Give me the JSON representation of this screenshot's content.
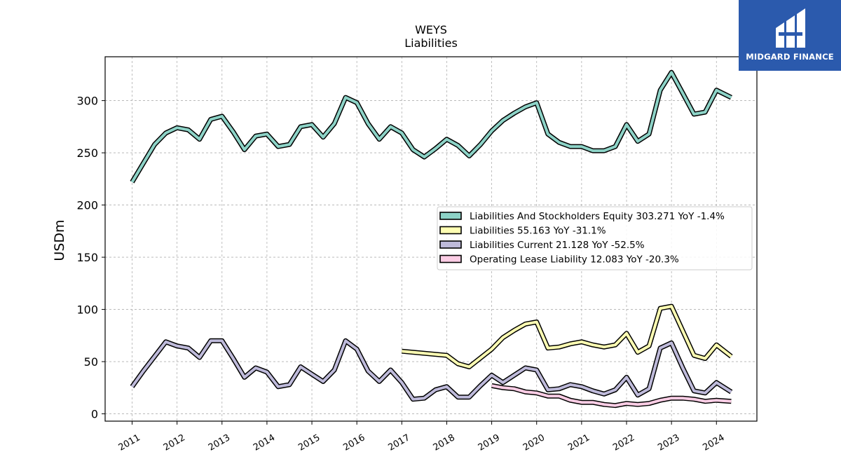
{
  "brand": {
    "name": "MIDGARD FINANCE"
  },
  "chart_data": {
    "type": "line",
    "title": "WEYS",
    "subtitle": "Liabilities",
    "ylabel": "USDm",
    "xlabel": "",
    "xlim": [
      2010.4,
      2024.9
    ],
    "ylim": [
      -7,
      342
    ],
    "yticks": [
      0,
      50,
      100,
      150,
      200,
      250,
      300
    ],
    "xticks": [
      2011,
      2012,
      2013,
      2014,
      2015,
      2016,
      2017,
      2018,
      2019,
      2020,
      2021,
      2022,
      2023,
      2024
    ],
    "grid": true,
    "legend_position": "center-right",
    "series": [
      {
        "name": "Liabilities And Stockholders Equity",
        "legend": "Liabilities And Stockholders Equity  303.271 YoY -1.4%",
        "color": "#8dd3c7",
        "points": [
          [
            2011.0,
            222
          ],
          [
            2011.25,
            240
          ],
          [
            2011.5,
            258
          ],
          [
            2011.75,
            269
          ],
          [
            2012.0,
            274
          ],
          [
            2012.25,
            272
          ],
          [
            2012.5,
            263
          ],
          [
            2012.75,
            282
          ],
          [
            2013.0,
            285
          ],
          [
            2013.25,
            270
          ],
          [
            2013.5,
            253
          ],
          [
            2013.75,
            266
          ],
          [
            2014.0,
            268
          ],
          [
            2014.25,
            256
          ],
          [
            2014.5,
            258
          ],
          [
            2014.75,
            275
          ],
          [
            2015.0,
            277
          ],
          [
            2015.25,
            265
          ],
          [
            2015.5,
            278
          ],
          [
            2015.75,
            303
          ],
          [
            2016.0,
            298
          ],
          [
            2016.25,
            278
          ],
          [
            2016.5,
            263
          ],
          [
            2016.75,
            275
          ],
          [
            2017.0,
            269
          ],
          [
            2017.25,
            253
          ],
          [
            2017.5,
            246
          ],
          [
            2017.75,
            254
          ],
          [
            2018.0,
            263
          ],
          [
            2018.25,
            257
          ],
          [
            2018.5,
            247
          ],
          [
            2018.75,
            258
          ],
          [
            2019.0,
            271
          ],
          [
            2019.25,
            281
          ],
          [
            2019.5,
            288
          ],
          [
            2019.75,
            294
          ],
          [
            2020.0,
            298
          ],
          [
            2020.25,
            268
          ],
          [
            2020.5,
            260
          ],
          [
            2020.75,
            256
          ],
          [
            2021.0,
            256
          ],
          [
            2021.25,
            252
          ],
          [
            2021.5,
            252
          ],
          [
            2021.75,
            256
          ],
          [
            2022.0,
            277
          ],
          [
            2022.25,
            261
          ],
          [
            2022.5,
            268
          ],
          [
            2022.75,
            310
          ],
          [
            2023.0,
            327
          ],
          [
            2023.25,
            307
          ],
          [
            2023.5,
            287
          ],
          [
            2023.75,
            289
          ],
          [
            2024.0,
            310
          ],
          [
            2024.33,
            303
          ]
        ]
      },
      {
        "name": "Liabilities",
        "legend": "Liabilities  55.163 YoY -31.1%",
        "color": "#ffffb3",
        "points": [
          [
            2017.0,
            60
          ],
          [
            2018.0,
            56
          ],
          [
            2018.25,
            48
          ],
          [
            2018.5,
            45
          ],
          [
            2019.0,
            62
          ],
          [
            2019.25,
            73
          ],
          [
            2019.5,
            80
          ],
          [
            2019.75,
            86
          ],
          [
            2020.0,
            88
          ],
          [
            2020.25,
            63
          ],
          [
            2020.5,
            64
          ],
          [
            2020.75,
            67
          ],
          [
            2021.0,
            69
          ],
          [
            2021.25,
            66
          ],
          [
            2021.5,
            64
          ],
          [
            2021.75,
            66
          ],
          [
            2022.0,
            77
          ],
          [
            2022.25,
            59
          ],
          [
            2022.5,
            65
          ],
          [
            2022.75,
            101
          ],
          [
            2023.0,
            103
          ],
          [
            2023.5,
            56
          ],
          [
            2023.75,
            53
          ],
          [
            2024.0,
            66
          ],
          [
            2024.33,
            55
          ]
        ]
      },
      {
        "name": "Liabilities Current",
        "legend": "Liabilities Current  21.128 YoY -52.5%",
        "color": "#bebada",
        "points": [
          [
            2011.0,
            26
          ],
          [
            2011.25,
            41
          ],
          [
            2011.5,
            55
          ],
          [
            2011.75,
            69
          ],
          [
            2012.0,
            65
          ],
          [
            2012.25,
            63
          ],
          [
            2012.5,
            54
          ],
          [
            2012.75,
            70
          ],
          [
            2013.0,
            70
          ],
          [
            2013.25,
            53
          ],
          [
            2013.5,
            35
          ],
          [
            2013.75,
            44
          ],
          [
            2014.0,
            40
          ],
          [
            2014.25,
            26
          ],
          [
            2014.5,
            28
          ],
          [
            2014.75,
            45
          ],
          [
            2015.0,
            38
          ],
          [
            2015.25,
            31
          ],
          [
            2015.5,
            42
          ],
          [
            2015.75,
            70
          ],
          [
            2016.0,
            62
          ],
          [
            2016.25,
            41
          ],
          [
            2016.5,
            31
          ],
          [
            2016.75,
            42
          ],
          [
            2017.0,
            30
          ],
          [
            2017.25,
            14
          ],
          [
            2017.5,
            15
          ],
          [
            2017.75,
            23
          ],
          [
            2018.0,
            26
          ],
          [
            2018.25,
            16
          ],
          [
            2018.5,
            16
          ],
          [
            2018.75,
            27
          ],
          [
            2019.0,
            37
          ],
          [
            2019.25,
            30
          ],
          [
            2019.5,
            37
          ],
          [
            2019.75,
            44
          ],
          [
            2020.0,
            42
          ],
          [
            2020.25,
            23
          ],
          [
            2020.5,
            24
          ],
          [
            2020.75,
            28
          ],
          [
            2021.0,
            26
          ],
          [
            2021.25,
            22
          ],
          [
            2021.5,
            19
          ],
          [
            2021.75,
            23
          ],
          [
            2022.0,
            35
          ],
          [
            2022.25,
            18
          ],
          [
            2022.5,
            24
          ],
          [
            2022.75,
            63
          ],
          [
            2023.0,
            68
          ],
          [
            2023.25,
            44
          ],
          [
            2023.5,
            22
          ],
          [
            2023.75,
            20
          ],
          [
            2024.0,
            30
          ],
          [
            2024.33,
            21
          ]
        ]
      },
      {
        "name": "Operating Lease Liability",
        "legend": "Operating Lease Liability  12.083 YoY -20.3%",
        "color": "#fccde5",
        "points": [
          [
            2019.0,
            27
          ],
          [
            2019.25,
            25
          ],
          [
            2019.5,
            24
          ],
          [
            2019.75,
            21
          ],
          [
            2020.0,
            20
          ],
          [
            2020.25,
            17
          ],
          [
            2020.5,
            17
          ],
          [
            2020.75,
            13
          ],
          [
            2021.0,
            11
          ],
          [
            2021.25,
            11
          ],
          [
            2021.5,
            9
          ],
          [
            2021.75,
            8
          ],
          [
            2022.0,
            10
          ],
          [
            2022.25,
            9
          ],
          [
            2022.5,
            10
          ],
          [
            2022.75,
            13
          ],
          [
            2023.0,
            15
          ],
          [
            2023.25,
            15
          ],
          [
            2023.5,
            14
          ],
          [
            2023.75,
            12
          ],
          [
            2024.0,
            13
          ],
          [
            2024.33,
            12
          ]
        ]
      }
    ]
  }
}
